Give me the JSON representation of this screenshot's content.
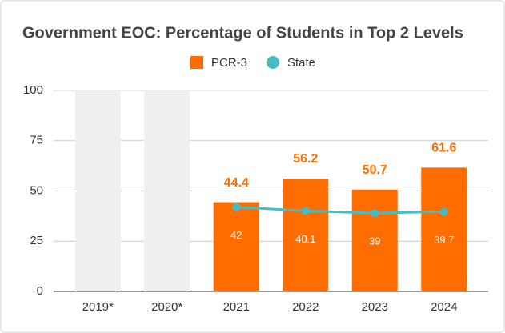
{
  "chart_data": {
    "type": "bar_line",
    "title": "Government EOC: Percentage of Students in Top 2 Levels",
    "categories": [
      "2019*",
      "2020*",
      "2021",
      "2022",
      "2023",
      "2024"
    ],
    "placeholder_values": [
      100,
      100,
      null,
      null,
      null,
      null
    ],
    "placeholder_color": "#efefef",
    "series": [
      {
        "name": "PCR-3",
        "color": "#ff6d01",
        "type": "bar",
        "values": [
          null,
          null,
          44.4,
          56.2,
          50.7,
          61.6
        ]
      },
      {
        "name": "State",
        "color": "#46bdc6",
        "type": "line",
        "values": [
          null,
          null,
          42,
          40.1,
          39,
          39.7
        ]
      }
    ],
    "ylim": [
      0,
      100
    ],
    "yticks": [
      0,
      25,
      50,
      75,
      100
    ],
    "grid": true,
    "legend": "top"
  }
}
